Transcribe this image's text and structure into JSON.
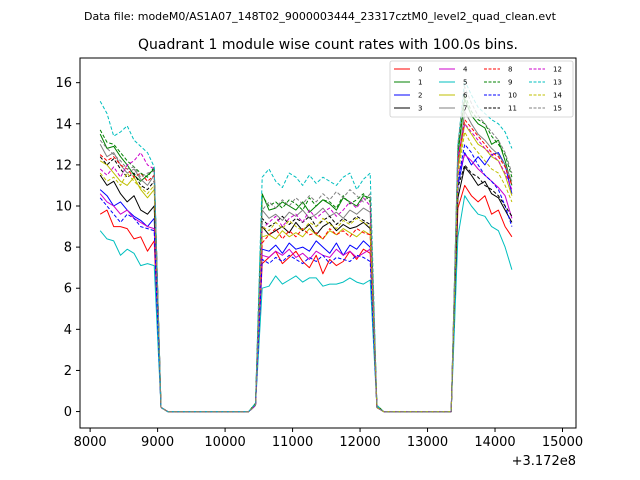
{
  "suptitle": "Data file: modeM0/AS1A07_148T02_9000003444_23317cztM0_level2_quad_clean.evt",
  "chart_data": {
    "type": "line",
    "title": "Quadrant 1 module wise count rates with 100.0s bins.",
    "xlabel": "",
    "ylabel": "",
    "x_offset_label": "+3.172e8",
    "xlim": [
      7850,
      15200
    ],
    "ylim": [
      -0.8,
      17.2
    ],
    "xticks": [
      8000,
      9000,
      10000,
      11000,
      12000,
      13000,
      14000,
      15000
    ],
    "yticks": [
      0,
      2,
      4,
      6,
      8,
      10,
      12,
      14,
      16
    ],
    "grid": false,
    "legend": {
      "placement": "top-right",
      "columns": 4
    },
    "x_start": 8150,
    "x_step": 100,
    "series": [
      {
        "name": "0",
        "color": "#ff0000",
        "dash": "solid",
        "values": [
          9.6,
          9.8,
          9.0,
          9.0,
          8.9,
          8.4,
          8.5,
          7.8,
          8.3,
          0.2,
          0,
          0,
          0,
          0,
          0,
          0,
          0,
          0,
          0,
          0,
          0,
          0,
          0,
          0.3,
          7.2,
          7.5,
          7.8,
          7.2,
          7.5,
          7.8,
          7.3,
          7.0,
          7.6,
          6.7,
          7.4,
          7.1,
          7.3,
          7.8,
          7.4,
          7.9,
          7.7,
          0.2,
          0,
          0,
          0,
          0,
          0,
          0,
          0,
          0,
          0,
          0,
          0,
          9.9,
          11.0,
          10.5,
          10.2,
          10.5,
          9.6,
          9.8,
          9.0,
          8.5
        ]
      },
      {
        "name": "1",
        "color": "#008000",
        "dash": "solid",
        "values": [
          13.5,
          12.8,
          12.9,
          12.4,
          12.0,
          11.5,
          11.2,
          11.5,
          11.8,
          0.2,
          0,
          0,
          0,
          0,
          0,
          0,
          0,
          0,
          0,
          0,
          0,
          0,
          0,
          0.4,
          10.6,
          9.8,
          9.9,
          10.2,
          10.0,
          9.8,
          10.2,
          9.7,
          10.0,
          10.3,
          10.1,
          9.8,
          10.4,
          10.2,
          10.0,
          10.5,
          10.4,
          0.3,
          0,
          0,
          0,
          0,
          0,
          0,
          0,
          0,
          0,
          0,
          0,
          12.5,
          15.2,
          14.4,
          14.0,
          13.8,
          13.0,
          13.2,
          12.2,
          11.0
        ]
      },
      {
        "name": "2",
        "color": "#0000ff",
        "dash": "solid",
        "values": [
          10.8,
          10.5,
          10.0,
          10.2,
          9.8,
          9.5,
          9.3,
          9.0,
          9.4,
          0.2,
          0,
          0,
          0,
          0,
          0,
          0,
          0,
          0,
          0,
          0,
          0,
          0,
          0,
          0.3,
          7.9,
          7.8,
          8.1,
          7.7,
          8.2,
          7.9,
          8.0,
          7.8,
          8.3,
          8.0,
          7.7,
          8.2,
          7.6,
          8.1,
          7.9,
          8.3,
          8.0,
          0.2,
          0,
          0,
          0,
          0,
          0,
          0,
          0,
          0,
          0,
          0,
          0,
          11.0,
          12.6,
          12.0,
          12.4,
          12.0,
          12.5,
          12.6,
          12.0,
          10.6
        ]
      },
      {
        "name": "3",
        "color": "#000000",
        "dash": "solid",
        "values": [
          11.5,
          11.0,
          11.2,
          10.6,
          10.2,
          10.5,
          9.8,
          9.6,
          10.0,
          0.2,
          0,
          0,
          0,
          0,
          0,
          0,
          0,
          0,
          0,
          0,
          0,
          0,
          0,
          0.3,
          9.0,
          8.6,
          8.8,
          9.0,
          8.7,
          9.2,
          8.8,
          9.1,
          8.6,
          9.0,
          9.2,
          8.8,
          9.1,
          8.9,
          9.0,
          9.2,
          8.9,
          0.2,
          0,
          0,
          0,
          0,
          0,
          0,
          0,
          0,
          0,
          0,
          0,
          10.4,
          11.9,
          11.5,
          11.0,
          11.2,
          10.6,
          10.4,
          9.8,
          9.2
        ]
      },
      {
        "name": "4",
        "color": "#cc00cc",
        "dash": "solid",
        "values": [
          10.6,
          10.2,
          10.0,
          9.6,
          9.8,
          9.4,
          9.2,
          9.0,
          8.9,
          0.2,
          0,
          0,
          0,
          0,
          0,
          0,
          0,
          0,
          0,
          0,
          0,
          0,
          0,
          0.3,
          7.6,
          7.5,
          7.8,
          7.6,
          7.9,
          7.5,
          7.7,
          7.4,
          7.8,
          7.6,
          7.5,
          7.9,
          7.6,
          7.8,
          7.5,
          7.7,
          7.9,
          0.2,
          0,
          0,
          0,
          0,
          0,
          0,
          0,
          0,
          0,
          0,
          0,
          11.5,
          12.5,
          12.2,
          11.8,
          11.5,
          11.2,
          10.9,
          10.5,
          9.4
        ]
      },
      {
        "name": "5",
        "color": "#00bfbf",
        "dash": "solid",
        "values": [
          8.8,
          8.4,
          8.3,
          7.6,
          7.9,
          7.7,
          7.1,
          7.2,
          7.1,
          0.2,
          0,
          0,
          0,
          0,
          0,
          0,
          0,
          0,
          0,
          0,
          0,
          0,
          0,
          0.3,
          6.0,
          6.1,
          6.6,
          6.2,
          6.4,
          6.6,
          6.3,
          6.5,
          6.5,
          6.1,
          6.2,
          6.2,
          6.3,
          6.5,
          6.3,
          6.2,
          6.4,
          0.2,
          0,
          0,
          0,
          0,
          0,
          0,
          0,
          0,
          0,
          0,
          0,
          8.5,
          10.5,
          10.0,
          9.6,
          9.5,
          9.0,
          8.8,
          8.0,
          6.9
        ]
      },
      {
        "name": "6",
        "color": "#bfbf00",
        "dash": "solid",
        "values": [
          12.2,
          12.0,
          11.6,
          11.2,
          11.0,
          11.4,
          10.8,
          10.4,
          10.8,
          0.2,
          0,
          0,
          0,
          0,
          0,
          0,
          0,
          0,
          0,
          0,
          0,
          0,
          0,
          0.3,
          8.5,
          8.6,
          8.4,
          8.8,
          8.5,
          8.7,
          8.5,
          8.9,
          8.6,
          8.4,
          8.8,
          8.6,
          8.9,
          8.7,
          8.5,
          8.8,
          8.6,
          0.2,
          0,
          0,
          0,
          0,
          0,
          0,
          0,
          0,
          0,
          0,
          0,
          11.8,
          14.0,
          13.5,
          13.0,
          12.8,
          12.4,
          12.2,
          11.5,
          10.5
        ]
      },
      {
        "name": "7",
        "color": "#808080",
        "dash": "solid",
        "values": [
          13.0,
          12.4,
          12.6,
          12.0,
          11.6,
          11.8,
          11.3,
          11.0,
          11.5,
          0.2,
          0,
          0,
          0,
          0,
          0,
          0,
          0,
          0,
          0,
          0,
          0,
          0,
          0,
          0.3,
          9.8,
          9.4,
          9.6,
          9.3,
          9.7,
          9.5,
          9.8,
          9.4,
          9.6,
          9.9,
          9.5,
          9.7,
          9.4,
          9.8,
          9.6,
          9.9,
          9.7,
          0.2,
          0,
          0,
          0,
          0,
          0,
          0,
          0,
          0,
          0,
          0,
          0,
          12.0,
          14.6,
          14.0,
          13.5,
          13.2,
          12.8,
          12.5,
          12.0,
          11.2
        ]
      },
      {
        "name": "8",
        "color": "#ff0000",
        "dash": "dashed",
        "values": [
          12.5,
          12.2,
          12.4,
          12.0,
          11.8,
          11.4,
          11.6,
          11.2,
          11.5,
          0.2,
          0,
          0,
          0,
          0,
          0,
          0,
          0,
          0,
          0,
          0,
          0,
          0,
          0,
          0.3,
          8.2,
          8.6,
          8.9,
          8.4,
          8.8,
          8.5,
          8.9,
          8.6,
          8.7,
          8.4,
          8.9,
          8.6,
          8.8,
          8.5,
          8.9,
          8.7,
          8.6,
          0.2,
          0,
          0,
          0,
          0,
          0,
          0,
          0,
          0,
          0,
          0,
          0,
          12.2,
          14.2,
          13.8,
          13.4,
          13.0,
          12.6,
          12.4,
          11.9,
          11.0
        ]
      },
      {
        "name": "9",
        "color": "#008000",
        "dash": "dashed",
        "values": [
          13.7,
          13.1,
          13.0,
          12.6,
          12.2,
          11.9,
          11.6,
          11.4,
          11.9,
          0.2,
          0,
          0,
          0,
          0,
          0,
          0,
          0,
          0,
          0,
          0,
          0,
          0,
          0,
          0.4,
          10.5,
          10.0,
          10.2,
          9.9,
          10.3,
          10.1,
          9.8,
          10.4,
          10.0,
          10.3,
          10.2,
          9.9,
          10.5,
          10.1,
          10.3,
          10.6,
          10.2,
          0.3,
          0,
          0,
          0,
          0,
          0,
          0,
          0,
          0,
          0,
          0,
          0,
          12.8,
          15.4,
          14.6,
          14.2,
          14.0,
          13.4,
          13.0,
          12.5,
          11.4
        ]
      },
      {
        "name": "10",
        "color": "#0000ff",
        "dash": "dashed",
        "values": [
          10.4,
          10.0,
          9.6,
          9.2,
          9.6,
          9.4,
          9.0,
          8.9,
          8.8,
          0.2,
          0,
          0,
          0,
          0,
          0,
          0,
          0,
          0,
          0,
          0,
          0,
          0,
          0,
          0.3,
          7.4,
          7.2,
          7.5,
          7.3,
          7.6,
          7.4,
          7.2,
          7.5,
          7.3,
          7.6,
          7.2,
          7.5,
          7.4,
          7.3,
          7.6,
          7.5,
          7.3,
          0.2,
          0,
          0,
          0,
          0,
          0,
          0,
          0,
          0,
          0,
          0,
          0,
          11.2,
          13.0,
          12.6,
          12.0,
          11.5,
          11.2,
          10.8,
          10.0,
          9.0
        ]
      },
      {
        "name": "11",
        "color": "#000000",
        "dash": "dashed",
        "values": [
          12.4,
          12.0,
          12.3,
          11.8,
          11.4,
          11.6,
          11.0,
          10.8,
          11.2,
          0.2,
          0,
          0,
          0,
          0,
          0,
          0,
          0,
          0,
          0,
          0,
          0,
          0,
          0,
          0.3,
          9.4,
          9.0,
          9.2,
          9.5,
          9.1,
          9.4,
          9.2,
          9.5,
          9.0,
          9.3,
          9.5,
          9.1,
          9.4,
          9.2,
          9.5,
          9.3,
          9.1,
          0.2,
          0,
          0,
          0,
          0,
          0,
          0,
          0,
          0,
          0,
          0,
          0,
          10.9,
          12.0,
          11.6,
          11.4,
          11.0,
          10.8,
          10.5,
          10.0,
          9.5
        ]
      },
      {
        "name": "12",
        "color": "#cc00cc",
        "dash": "dashed",
        "values": [
          11.8,
          11.5,
          11.9,
          11.4,
          12.0,
          12.2,
          12.6,
          12.0,
          11.8,
          0.2,
          0,
          0,
          0,
          0,
          0,
          0,
          0,
          0,
          0,
          0,
          0,
          0,
          0,
          0.3,
          8.9,
          9.2,
          9.5,
          9.0,
          9.4,
          9.6,
          9.2,
          9.8,
          9.4,
          9.7,
          9.9,
          9.5,
          9.8,
          10.2,
          9.9,
          10.4,
          10.0,
          0.2,
          0,
          0,
          0,
          0,
          0,
          0,
          0,
          0,
          0,
          0,
          0,
          12.4,
          14.0,
          13.6,
          13.2,
          12.8,
          12.5,
          12.2,
          11.6,
          10.8
        ]
      },
      {
        "name": "13",
        "color": "#00bfbf",
        "dash": "dashed",
        "values": [
          15.1,
          14.5,
          13.4,
          13.6,
          13.9,
          13.2,
          12.9,
          12.6,
          11.9,
          0.2,
          0,
          0,
          0,
          0,
          0,
          0,
          0,
          0,
          0,
          0,
          0,
          0,
          0,
          0.4,
          11.4,
          11.8,
          11.2,
          10.9,
          11.6,
          11.4,
          11.0,
          11.5,
          11.1,
          11.4,
          11.2,
          11.0,
          11.4,
          11.6,
          10.8,
          11.3,
          11.6,
          0.3,
          0,
          0,
          0,
          0,
          0,
          0,
          0,
          0,
          0,
          0,
          0,
          13.0,
          16.1,
          15.4,
          14.8,
          14.5,
          14.2,
          14.0,
          13.6,
          12.8
        ]
      },
      {
        "name": "14",
        "color": "#bfbf00",
        "dash": "dashed",
        "values": [
          11.6,
          11.2,
          11.4,
          11.0,
          11.6,
          11.2,
          10.9,
          10.6,
          11.0,
          0.2,
          0,
          0,
          0,
          0,
          0,
          0,
          0,
          0,
          0,
          0,
          0,
          0,
          0,
          0.3,
          9.0,
          8.8,
          9.2,
          8.9,
          9.3,
          9.0,
          8.8,
          9.2,
          9.0,
          9.4,
          9.1,
          8.9,
          9.3,
          9.1,
          9.4,
          9.2,
          9.0,
          0.2,
          0,
          0,
          0,
          0,
          0,
          0,
          0,
          0,
          0,
          0,
          0,
          11.5,
          13.6,
          13.0,
          12.6,
          12.2,
          11.8,
          11.6,
          11.0,
          10.2
        ]
      },
      {
        "name": "15",
        "color": "#808080",
        "dash": "dashed",
        "values": [
          13.2,
          12.8,
          12.5,
          12.2,
          11.8,
          11.9,
          11.4,
          11.6,
          11.7,
          0.2,
          0,
          0,
          0,
          0,
          0,
          0,
          0,
          0,
          0,
          0,
          0,
          0,
          0,
          0.3,
          9.8,
          10.2,
          9.9,
          10.3,
          10.0,
          10.4,
          10.1,
          10.5,
          10.2,
          10.6,
          10.3,
          10.7,
          10.4,
          10.8,
          10.5,
          10.2,
          10.6,
          0.2,
          0,
          0,
          0,
          0,
          0,
          0,
          0,
          0,
          0,
          0,
          0,
          13.0,
          15.8,
          15.0,
          14.4,
          14.0,
          13.6,
          13.2,
          12.6,
          11.6
        ]
      }
    ]
  }
}
